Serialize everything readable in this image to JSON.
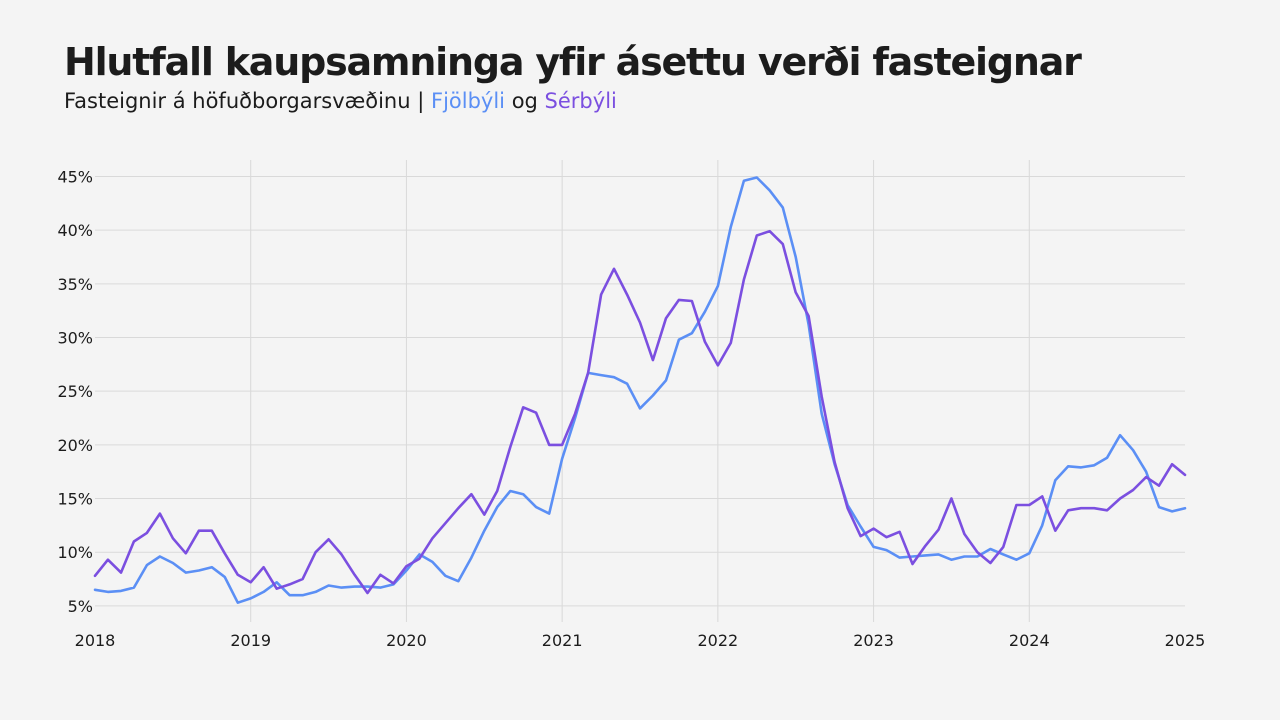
{
  "chart_data": {
    "type": "line",
    "title": "Hlutfall kaupsamninga yfir ásettu verði fasteignar",
    "subtitle": {
      "prefix": "Fasteignir á höfuðborgarsvæðinu | ",
      "series1": "Fjölbýli",
      "join": " og ",
      "series2": "Sérbýli"
    },
    "x": [
      2018.0,
      2018.083,
      2018.167,
      2018.25,
      2018.333,
      2018.417,
      2018.5,
      2018.583,
      2018.667,
      2018.75,
      2018.833,
      2018.917,
      2019.0,
      2019.083,
      2019.167,
      2019.25,
      2019.333,
      2019.417,
      2019.5,
      2019.583,
      2019.667,
      2019.75,
      2019.833,
      2019.917,
      2020.0,
      2020.083,
      2020.167,
      2020.25,
      2020.333,
      2020.417,
      2020.5,
      2020.583,
      2020.667,
      2020.75,
      2020.833,
      2020.917,
      2021.0,
      2021.083,
      2021.167,
      2021.25,
      2021.333,
      2021.417,
      2021.5,
      2021.583,
      2021.667,
      2021.75,
      2021.833,
      2021.917,
      2022.0,
      2022.083,
      2022.167,
      2022.25,
      2022.333,
      2022.417,
      2022.5,
      2022.583,
      2022.667,
      2022.75,
      2022.833,
      2022.917,
      2023.0,
      2023.083,
      2023.167,
      2023.25,
      2023.333,
      2023.417,
      2023.5,
      2023.583,
      2023.667,
      2023.75,
      2023.833,
      2023.917,
      2024.0,
      2024.083,
      2024.167,
      2024.25,
      2024.333,
      2024.417,
      2024.5,
      2024.583,
      2024.667,
      2024.75,
      2024.833,
      2024.917,
      2025.0
    ],
    "series": [
      {
        "name": "Fjölbýli",
        "color": "#5b8ff5",
        "values": [
          6.5,
          6.3,
          6.4,
          6.7,
          8.8,
          9.6,
          9.0,
          8.1,
          8.3,
          8.6,
          7.7,
          5.3,
          5.7,
          6.3,
          7.2,
          6.0,
          6.0,
          6.3,
          6.9,
          6.7,
          6.8,
          6.8,
          6.7,
          7.0,
          8.3,
          9.8,
          9.1,
          7.8,
          7.3,
          9.5,
          12.0,
          14.2,
          15.7,
          15.4,
          14.2,
          13.6,
          18.7,
          22.5,
          26.7,
          26.5,
          26.3,
          25.7,
          23.4,
          24.6,
          26.0,
          29.8,
          30.4,
          32.4,
          34.8,
          40.3,
          44.6,
          44.9,
          43.7,
          42.1,
          37.5,
          31.2,
          22.9,
          18.2,
          14.4,
          12.4,
          10.5,
          10.2,
          9.5,
          9.6,
          9.7,
          9.8,
          9.3,
          9.6,
          9.6,
          10.3,
          9.8,
          9.3,
          9.9,
          12.5,
          16.7,
          18.0,
          17.9,
          18.1,
          18.8,
          20.9,
          19.5,
          17.5,
          14.2,
          13.8,
          14.1
        ]
      },
      {
        "name": "Sérbýli",
        "color": "#7b4fe0",
        "values": [
          7.8,
          9.3,
          8.1,
          11.0,
          11.8,
          13.6,
          11.3,
          9.9,
          12.0,
          12.0,
          9.9,
          7.9,
          7.2,
          8.6,
          6.6,
          7.0,
          7.5,
          10.0,
          11.2,
          9.8,
          7.9,
          6.2,
          7.9,
          7.1,
          8.7,
          9.4,
          11.3,
          12.7,
          14.1,
          15.4,
          13.5,
          15.7,
          19.8,
          23.5,
          23.0,
          20.0,
          20.0,
          22.9,
          26.7,
          34.0,
          36.4,
          34.0,
          31.4,
          27.9,
          31.8,
          33.5,
          33.4,
          29.6,
          27.4,
          29.5,
          35.4,
          39.5,
          39.9,
          38.7,
          34.2,
          32.0,
          24.5,
          18.4,
          14.1,
          11.5,
          12.2,
          11.4,
          11.9,
          8.9,
          10.6,
          12.1,
          15.0,
          11.7,
          10.0,
          9.0,
          10.5,
          14.4,
          14.4,
          15.2,
          12.0,
          13.9,
          14.1,
          14.1,
          13.9,
          15.0,
          15.8,
          17.0,
          16.2,
          18.2,
          17.2
        ]
      }
    ],
    "xlim": [
      2018,
      2025
    ],
    "ylim": [
      3.5,
      47
    ],
    "xticks": [
      {
        "value": 2018,
        "label": "2018"
      },
      {
        "value": 2019,
        "label": "2019"
      },
      {
        "value": 2020,
        "label": "2020"
      },
      {
        "value": 2021,
        "label": "2021"
      },
      {
        "value": 2022,
        "label": "2022"
      },
      {
        "value": 2023,
        "label": "2023"
      },
      {
        "value": 2024,
        "label": "2024"
      },
      {
        "value": 2025,
        "label": "2025"
      }
    ],
    "yticks": [
      {
        "value": 5,
        "label": "5%"
      },
      {
        "value": 10,
        "label": "10%"
      },
      {
        "value": 15,
        "label": "15%"
      },
      {
        "value": 20,
        "label": "20%"
      },
      {
        "value": 25,
        "label": "25%"
      },
      {
        "value": 30,
        "label": "30%"
      },
      {
        "value": 35,
        "label": "35%"
      },
      {
        "value": 40,
        "label": "40%"
      },
      {
        "value": 45,
        "label": "45%"
      }
    ],
    "grid": true,
    "legend": "none"
  }
}
